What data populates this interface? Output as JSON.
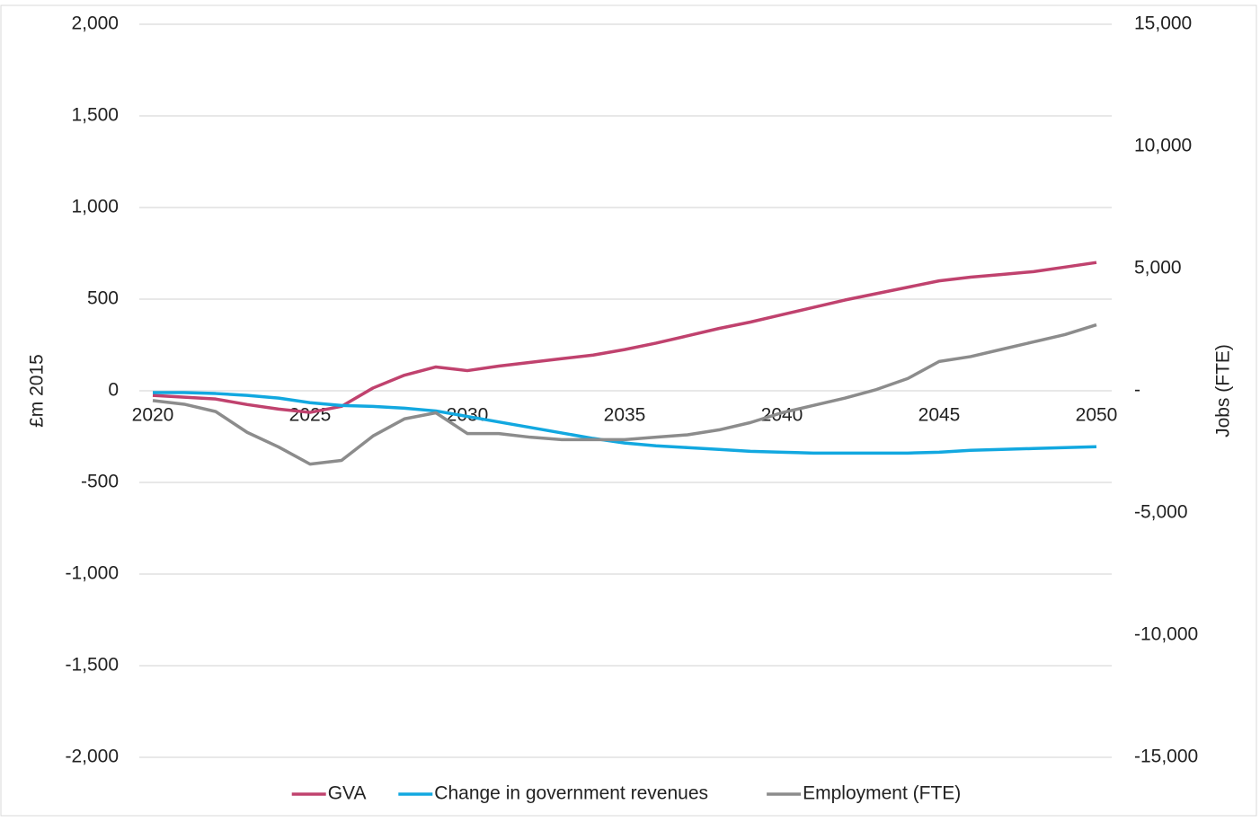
{
  "chart_data": {
    "type": "line",
    "x": [
      2020,
      2021,
      2022,
      2023,
      2024,
      2025,
      2026,
      2027,
      2028,
      2029,
      2030,
      2031,
      2032,
      2033,
      2034,
      2035,
      2036,
      2037,
      2038,
      2039,
      2040,
      2041,
      2042,
      2043,
      2044,
      2045,
      2046,
      2047,
      2048,
      2049,
      2050
    ],
    "xlim": [
      2020,
      2050
    ],
    "xticks": [
      2020,
      2025,
      2030,
      2035,
      2040,
      2045,
      2050
    ],
    "ylabel": "£m 2015",
    "y2label": "Jobs (FTE)",
    "ylim": [
      -2000,
      2000
    ],
    "yticks": [
      {
        "value": -2000,
        "label": "-2,000"
      },
      {
        "value": -1500,
        "label": "-1,500"
      },
      {
        "value": -1000,
        "label": "-1,000"
      },
      -500,
      0,
      500,
      {
        "value": 1000,
        "label": "1,000"
      },
      {
        "value": 1500,
        "label": "1,500"
      },
      {
        "value": 2000,
        "label": "2,000"
      }
    ],
    "y2lim": [
      -15000,
      15000
    ],
    "y2ticks": [
      {
        "value": -15000,
        "label": "-15,000"
      },
      {
        "value": -10000,
        "label": "-10,000"
      },
      {
        "value": -5000,
        "label": "-5,000"
      },
      {
        "value": 0,
        "label": "-"
      },
      {
        "value": 5000,
        "label": "5,000"
      },
      {
        "value": 10000,
        "label": "10,000"
      },
      {
        "value": 15000,
        "label": "15,000"
      }
    ],
    "grid": true,
    "legend": "bottom",
    "series": [
      {
        "name": "GVA",
        "color": "#c0426e",
        "values": [
          -25,
          -35,
          -45,
          -75,
          -100,
          -118,
          -85,
          15,
          85,
          130,
          110,
          135,
          155,
          175,
          195,
          225,
          260,
          300,
          340,
          375,
          415,
          455,
          495,
          530,
          565,
          600,
          620,
          635,
          650,
          675,
          700
        ]
      },
      {
        "name": "Change in government revenues",
        "color": "#12a8e0",
        "values": [
          -10,
          -10,
          -15,
          -25,
          -40,
          -65,
          -80,
          -85,
          -95,
          -110,
          -140,
          -170,
          -200,
          -230,
          -260,
          -285,
          -300,
          -310,
          -320,
          -330,
          -335,
          -340,
          -340,
          -340,
          -340,
          -335,
          -325,
          -320,
          -315,
          -310,
          -305
        ]
      },
      {
        "name": "Employment (FTE)",
        "color": "#8c8c8c",
        "axis": "y2",
        "values": [
          -400,
          -550,
          -850,
          -1700,
          -2300,
          -3000,
          -2850,
          -1850,
          -1150,
          -900,
          -1750,
          -1750,
          -1900,
          -2000,
          -2000,
          -2000,
          -1900,
          -1800,
          -1600,
          -1300,
          -900,
          -600,
          -300,
          50,
          500,
          1200,
          1400,
          1700,
          2000,
          2300,
          2700
        ]
      }
    ]
  }
}
